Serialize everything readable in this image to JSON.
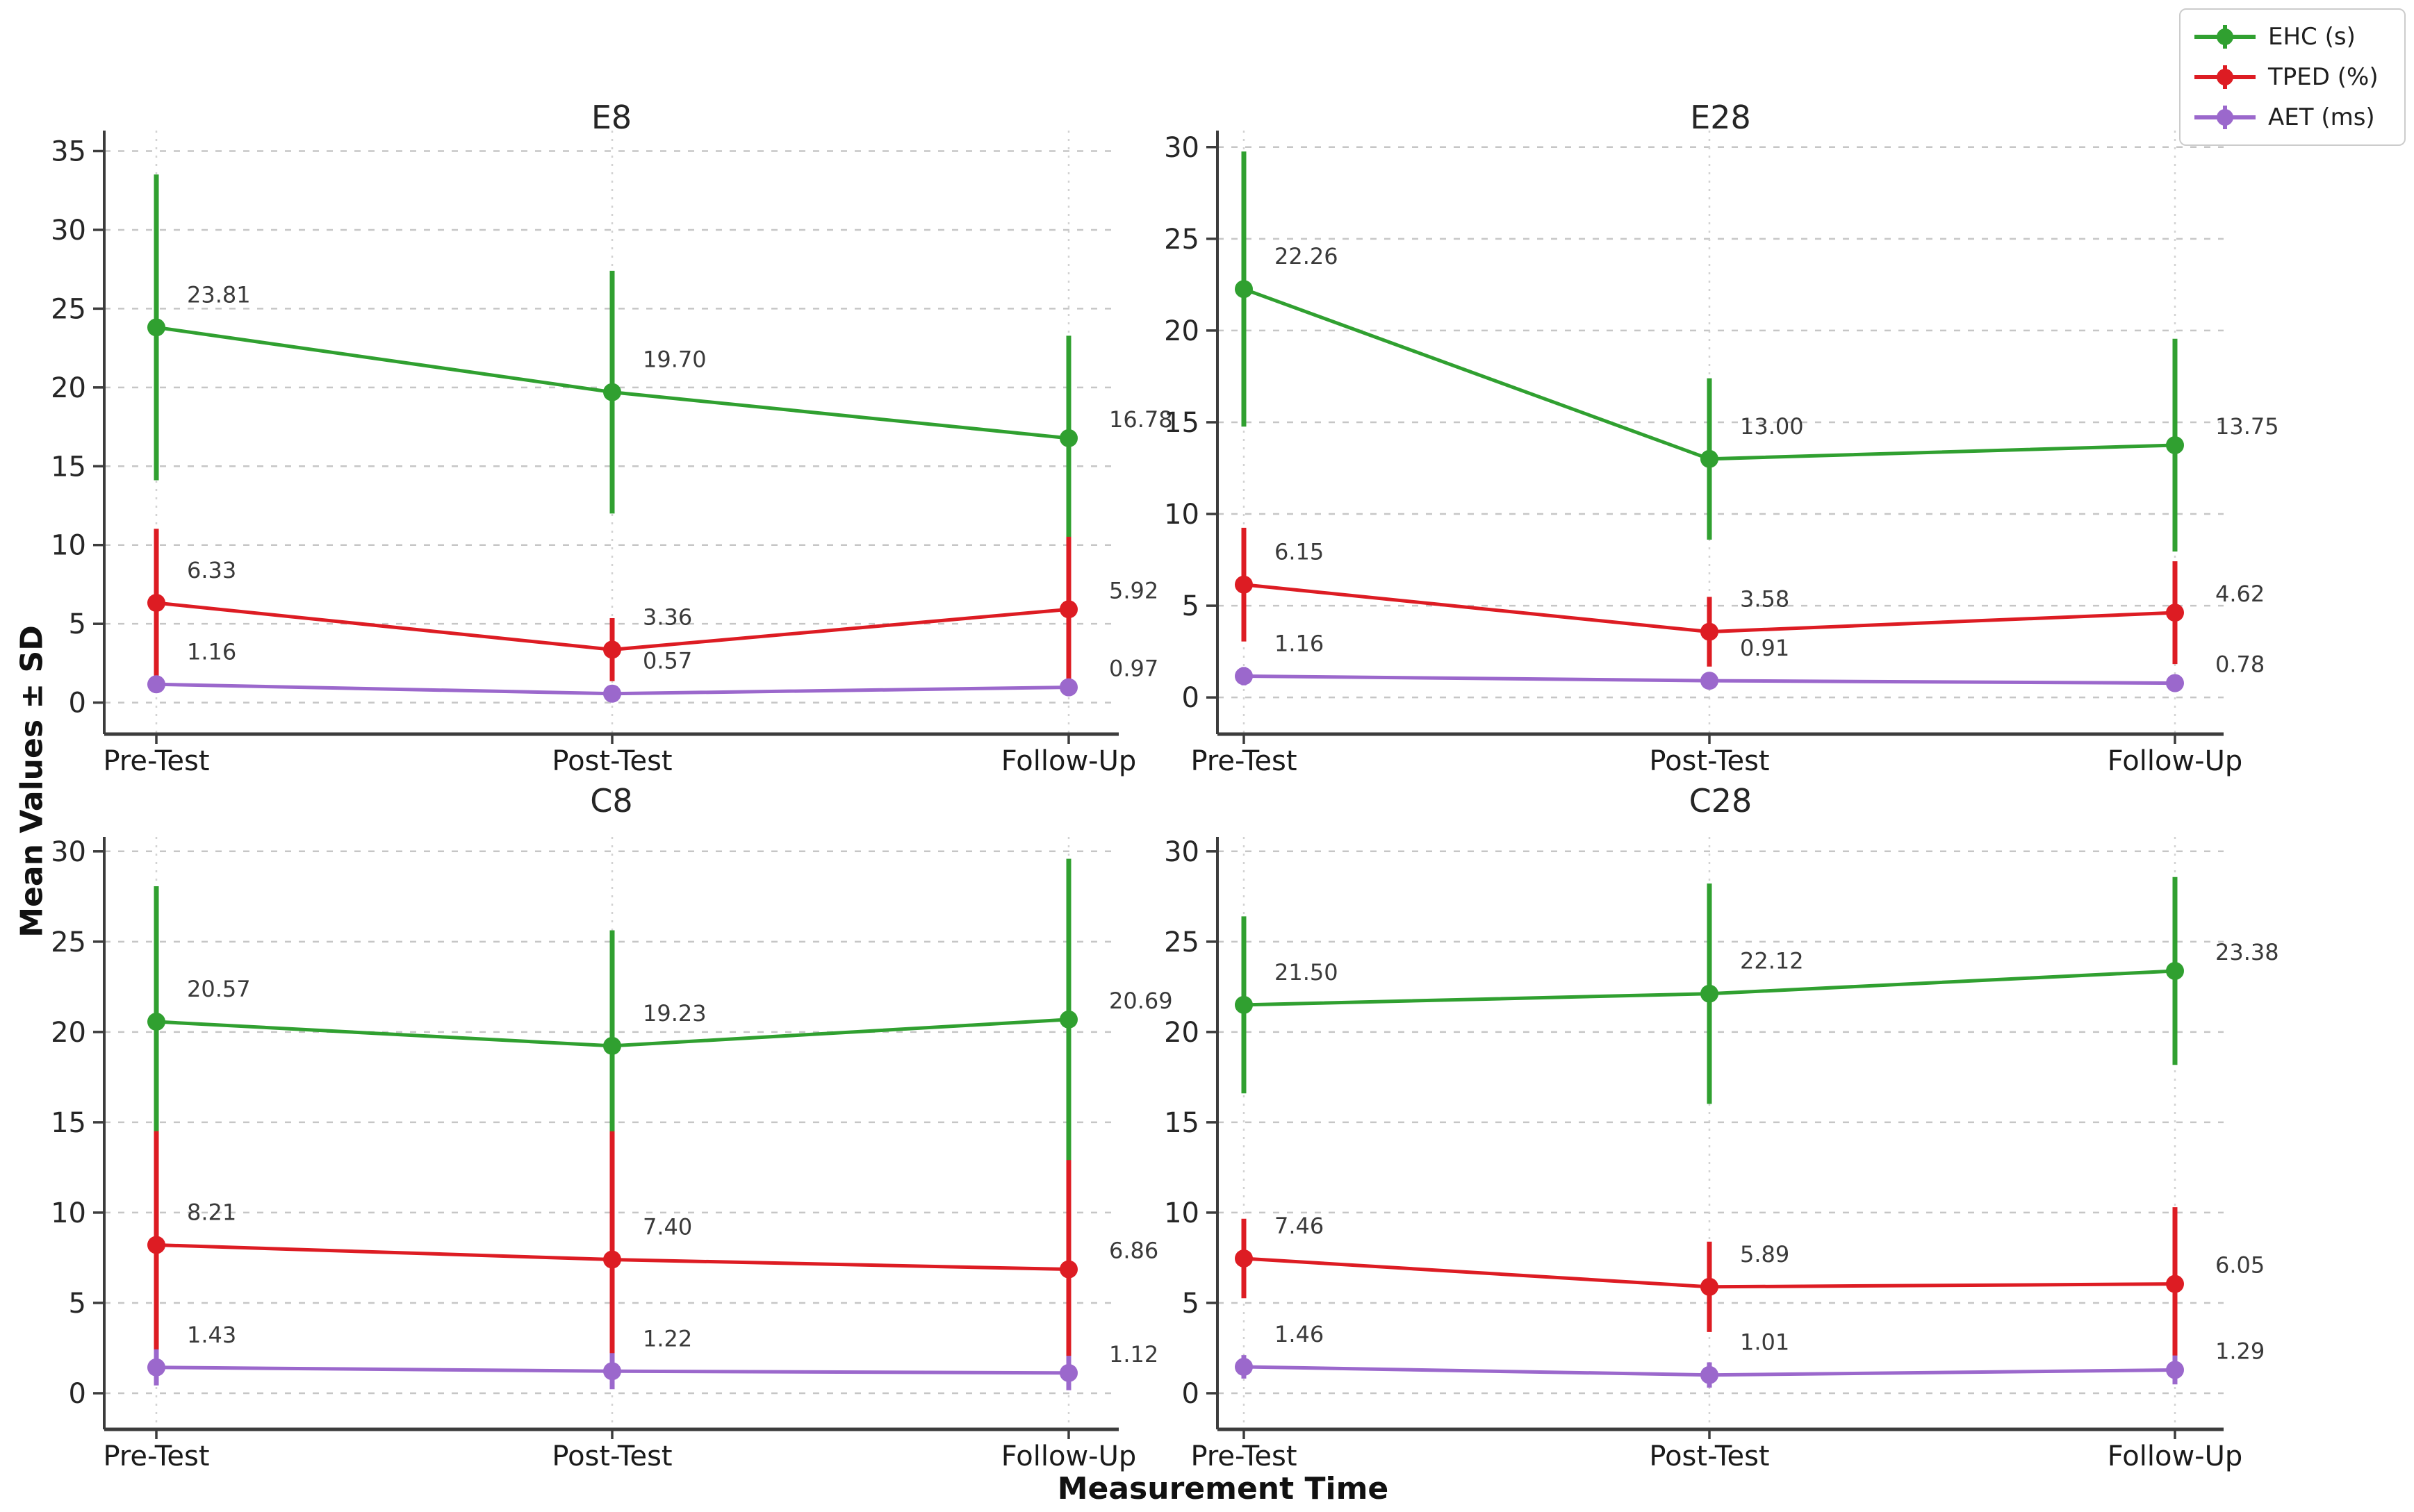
{
  "figure": {
    "ylabel": "Mean Values ± SD",
    "xlabel": "Measurement Time",
    "background": "#ffffff",
    "grid_color": "#c6c6c6",
    "spine_color": "#3c3c3c",
    "legend": [
      {
        "label": "EHC (s)",
        "color": "#30a030"
      },
      {
        "label": "TPED (%)",
        "color": "#dd1c23"
      },
      {
        "label": "AET (ms)",
        "color": "#9b68cc"
      }
    ]
  },
  "chart_data": [
    {
      "type": "line",
      "title": "E8",
      "categories": [
        "Pre-Test",
        "Post-Test",
        "Follow-Up"
      ],
      "ylim": [
        -2,
        36.3
      ],
      "yticks": [
        0,
        5,
        10,
        15,
        20,
        25,
        30,
        35
      ],
      "grid": true,
      "legend_position": "upper right (figure)",
      "series": [
        {
          "name": "EHC (s)",
          "color": "#30a030",
          "values": [
            23.81,
            19.7,
            16.78
          ],
          "sd": [
            9.7,
            7.7,
            6.5
          ],
          "labels": [
            "23.81",
            "19.70",
            "16.78"
          ]
        },
        {
          "name": "TPED (%)",
          "color": "#dd1c23",
          "values": [
            6.33,
            3.36,
            5.92
          ],
          "sd": [
            4.7,
            2.0,
            4.6
          ],
          "labels": [
            "6.33",
            "3.36",
            "5.92"
          ]
        },
        {
          "name": "AET (ms)",
          "color": "#9b68cc",
          "values": [
            1.16,
            0.57,
            0.97
          ],
          "sd": [
            0.55,
            0.35,
            0.5
          ],
          "labels": [
            "1.16",
            "0.57",
            "0.97"
          ]
        }
      ]
    },
    {
      "type": "line",
      "title": "E28",
      "categories": [
        "Pre-Test",
        "Post-Test",
        "Follow-Up"
      ],
      "ylim": [
        -2,
        30.9
      ],
      "yticks": [
        0,
        5,
        10,
        15,
        20,
        25,
        30
      ],
      "grid": true,
      "series": [
        {
          "name": "EHC (s)",
          "color": "#30a030",
          "values": [
            22.26,
            13.0,
            13.75
          ],
          "sd": [
            7.5,
            4.4,
            5.8
          ],
          "labels": [
            "22.26",
            "13.00",
            "13.75"
          ]
        },
        {
          "name": "TPED (%)",
          "color": "#dd1c23",
          "values": [
            6.15,
            3.58,
            4.62
          ],
          "sd": [
            3.1,
            1.9,
            2.8
          ],
          "labels": [
            "6.15",
            "3.58",
            "4.62"
          ]
        },
        {
          "name": "AET (ms)",
          "color": "#9b68cc",
          "values": [
            1.16,
            0.91,
            0.78
          ],
          "sd": [
            0.5,
            0.45,
            0.4
          ],
          "labels": [
            "1.16",
            "0.91",
            "0.78"
          ]
        }
      ]
    },
    {
      "type": "line",
      "title": "C8",
      "categories": [
        "Pre-Test",
        "Post-Test",
        "Follow-Up"
      ],
      "ylim": [
        -2,
        30.8
      ],
      "yticks": [
        0,
        5,
        10,
        15,
        20,
        25,
        30
      ],
      "grid": true,
      "series": [
        {
          "name": "EHC (s)",
          "color": "#30a030",
          "values": [
            20.57,
            19.23,
            20.69
          ],
          "sd": [
            7.5,
            6.4,
            8.9
          ],
          "labels": [
            "20.57",
            "19.23",
            "20.69"
          ]
        },
        {
          "name": "TPED (%)",
          "color": "#dd1c23",
          "values": [
            8.21,
            7.4,
            6.86
          ],
          "sd": [
            6.3,
            7.1,
            6.05
          ],
          "labels": [
            "8.21",
            "7.40",
            "6.86"
          ]
        },
        {
          "name": "AET (ms)",
          "color": "#9b68cc",
          "values": [
            1.43,
            1.22,
            1.12
          ],
          "sd": [
            1.0,
            1.0,
            0.95
          ],
          "labels": [
            "1.43",
            "1.22",
            "1.12"
          ]
        }
      ]
    },
    {
      "type": "line",
      "title": "C28",
      "categories": [
        "Pre-Test",
        "Post-Test",
        "Follow-Up"
      ],
      "ylim": [
        -2,
        30.8
      ],
      "yticks": [
        0,
        5,
        10,
        15,
        20,
        25,
        30
      ],
      "grid": true,
      "series": [
        {
          "name": "EHC (s)",
          "color": "#30a030",
          "values": [
            21.5,
            22.12,
            23.38
          ],
          "sd": [
            4.9,
            6.1,
            5.2
          ],
          "labels": [
            "21.50",
            "22.12",
            "23.38"
          ]
        },
        {
          "name": "TPED (%)",
          "color": "#dd1c23",
          "values": [
            7.46,
            5.89,
            6.05
          ],
          "sd": [
            2.2,
            2.5,
            4.25
          ],
          "labels": [
            "7.46",
            "5.89",
            "6.05"
          ]
        },
        {
          "name": "AET (ms)",
          "color": "#9b68cc",
          "values": [
            1.46,
            1.01,
            1.29
          ],
          "sd": [
            0.65,
            0.7,
            0.8
          ],
          "labels": [
            "1.46",
            "1.01",
            "1.29"
          ]
        }
      ]
    }
  ]
}
